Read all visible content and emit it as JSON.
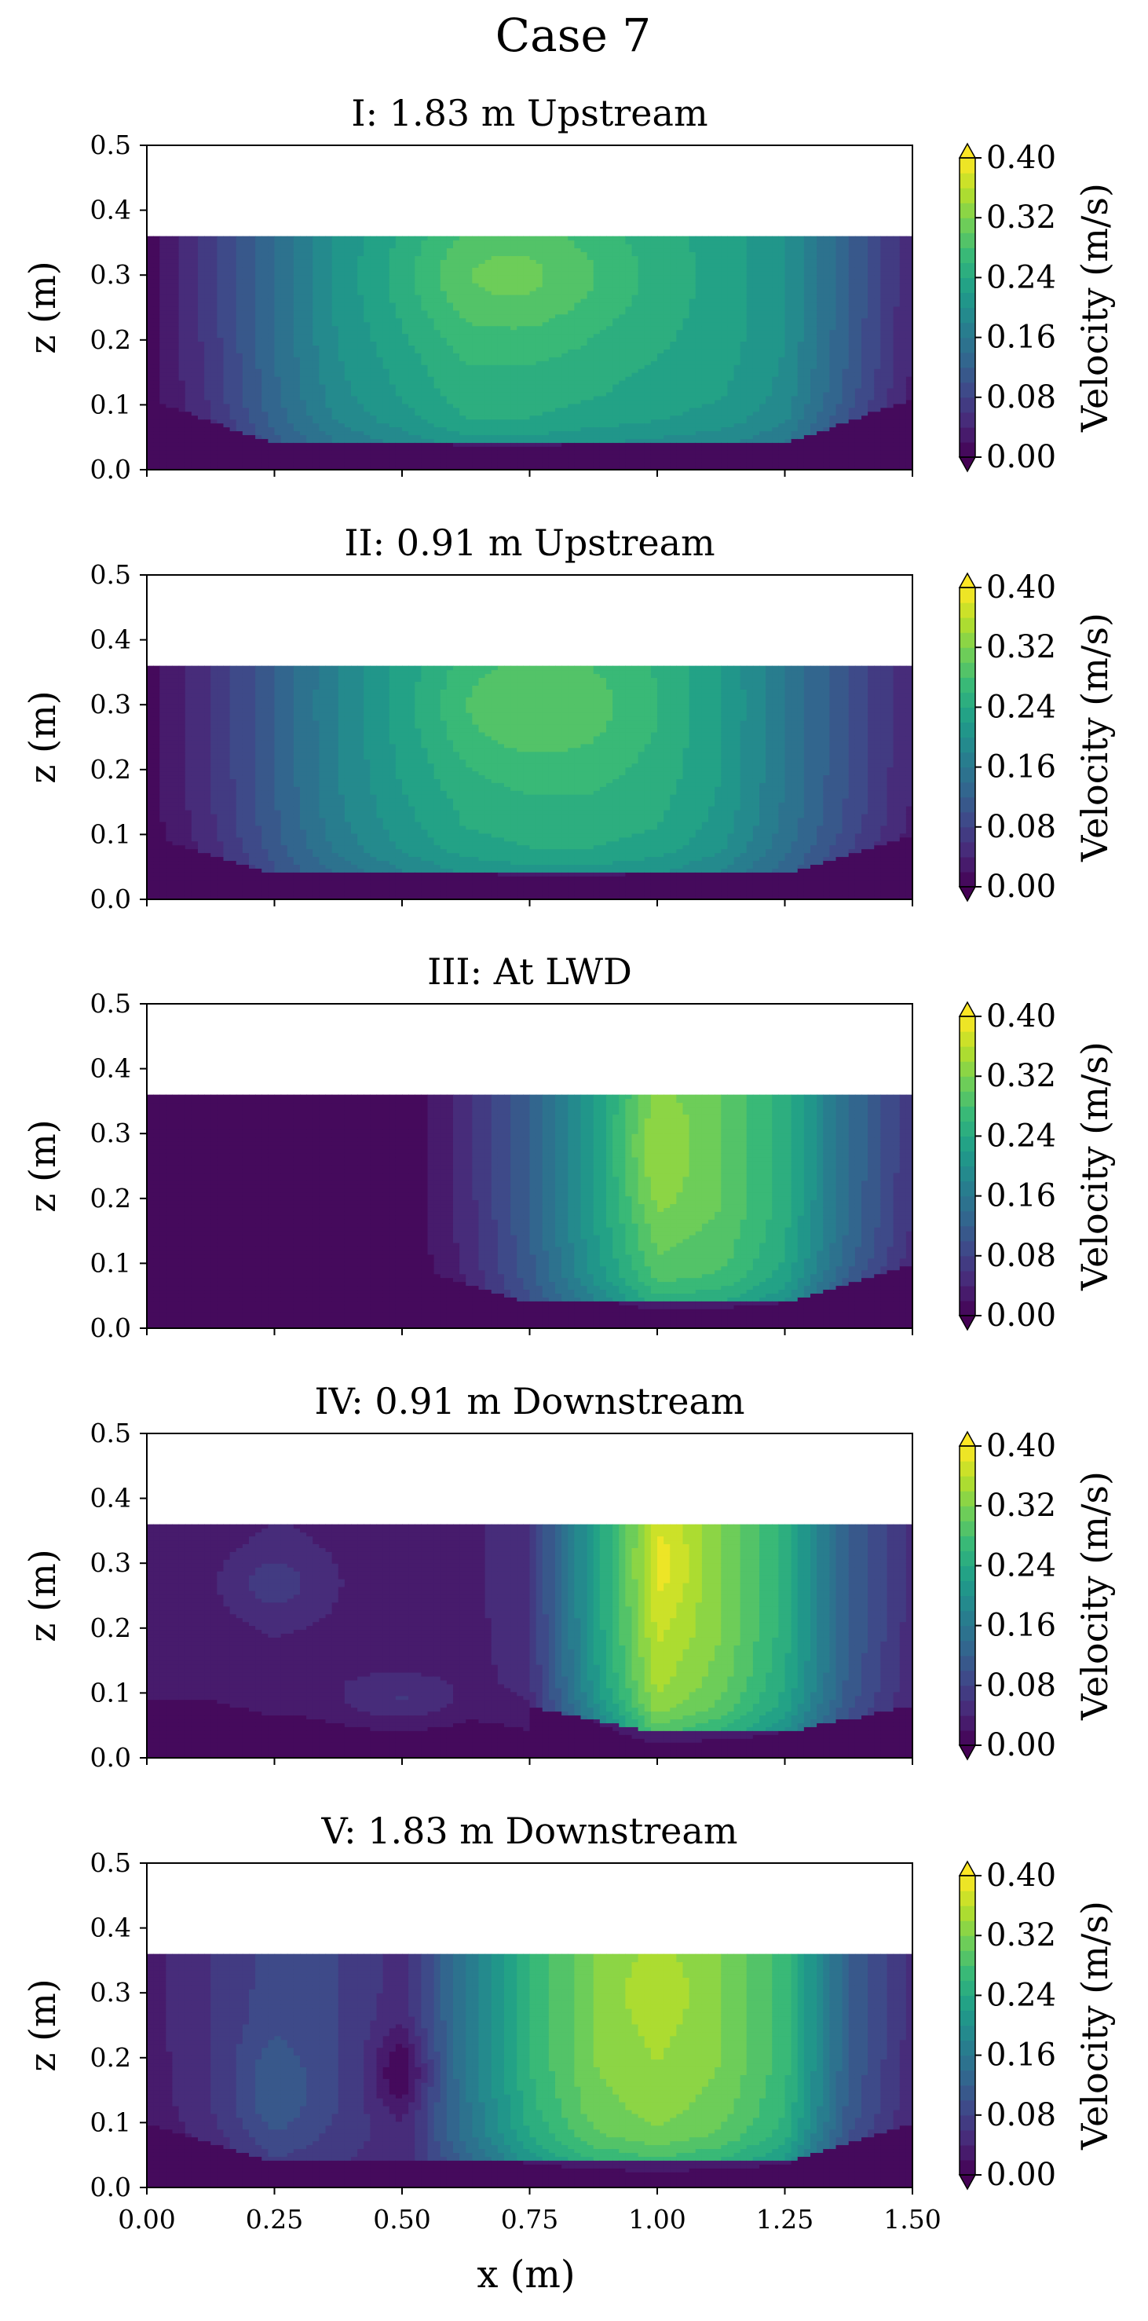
{
  "figure": {
    "title": "Case 7"
  },
  "chart_data": {
    "type": "contour",
    "suptitle": "Case 7",
    "shared": {
      "xlabel": "x (m)",
      "ylabel": "z (m)",
      "xlim": [
        0.0,
        1.5
      ],
      "ylim": [
        0.0,
        0.5
      ],
      "xticks": [
        "0.00",
        "0.25",
        "0.50",
        "0.75",
        "1.00",
        "1.25",
        "1.50"
      ],
      "yticks": [
        "0.0",
        "0.1",
        "0.2",
        "0.3",
        "0.4",
        "0.5"
      ],
      "water_surface_z": 0.36,
      "x_grid": [
        0.0,
        0.125,
        0.25,
        0.375,
        0.5,
        0.625,
        0.75,
        0.875,
        1.0,
        1.125,
        1.25,
        1.375,
        1.5
      ],
      "z_grid": [
        0.0,
        0.0375,
        0.075,
        0.1125,
        0.15,
        0.1875,
        0.225,
        0.2625,
        0.3,
        0.3375,
        0.36
      ],
      "colorbar": {
        "label": "Velocity (m/s)",
        "ticks": [
          "0.00",
          "0.08",
          "0.16",
          "0.24",
          "0.32",
          "0.40"
        ],
        "range": [
          0.0,
          0.4
        ],
        "extend": "both",
        "colormap": "viridis",
        "colormap_stops": [
          "#440154",
          "#482878",
          "#3e4989",
          "#31688e",
          "#26828e",
          "#1f9e89",
          "#35b779",
          "#6ece58",
          "#b5de2b",
          "#fde725"
        ]
      }
    },
    "panels": [
      {
        "title": "I: 1.83 m Upstream",
        "velocity_cols": [
          0.01,
          0.07,
          0.14,
          0.2,
          0.23,
          0.26,
          0.26,
          0.25,
          0.24,
          0.23,
          0.2,
          0.12,
          0.04
        ],
        "velocity_rows": [
          0.0,
          0.3,
          0.56,
          0.82,
          0.92,
          0.96,
          1.0,
          1.0,
          1.0,
          1.0,
          1.0
        ],
        "bed_x_nodes": [
          0.0,
          0.25,
          1.25,
          1.5
        ],
        "bed_z_nodes": [
          0.11,
          0.04,
          0.04,
          0.11
        ],
        "hotspots": [
          {
            "x": 0.72,
            "z": 0.3,
            "amp": 0.045,
            "sx": 0.25,
            "sz": 0.09
          }
        ]
      },
      {
        "title": "II: 0.91 m Upstream",
        "velocity_cols": [
          0.01,
          0.06,
          0.12,
          0.18,
          0.22,
          0.25,
          0.26,
          0.26,
          0.25,
          0.22,
          0.16,
          0.1,
          0.04
        ],
        "velocity_rows": [
          0.0,
          0.3,
          0.56,
          0.82,
          0.92,
          0.96,
          1.0,
          1.0,
          1.0,
          1.0,
          1.0
        ],
        "bed_x_nodes": [
          0.0,
          0.25,
          1.25,
          1.5
        ],
        "bed_z_nodes": [
          0.1,
          0.04,
          0.04,
          0.1
        ],
        "hotspots": [
          {
            "x": 0.75,
            "z": 0.3,
            "amp": 0.04,
            "sx": 0.22,
            "sz": 0.09
          }
        ]
      },
      {
        "title": "III: At LWD",
        "velocity_cols": [
          0.0,
          0.0,
          0.0,
          0.0,
          0.0,
          0.05,
          0.12,
          0.22,
          0.31,
          0.3,
          0.25,
          0.14,
          0.06
        ],
        "velocity_rows": [
          0.0,
          0.3,
          0.56,
          0.82,
          0.92,
          0.96,
          1.0,
          1.0,
          1.0,
          1.0,
          1.0
        ],
        "bed_x_nodes": [
          0.5,
          0.75,
          1.25,
          1.5
        ],
        "bed_z_nodes": [
          0.1,
          0.04,
          0.04,
          0.1
        ],
        "hotspots": [
          {
            "x": 1.0,
            "z": 0.28,
            "amp": 0.03,
            "sx": 0.08,
            "sz": 0.1
          }
        ]
      },
      {
        "title": "IV: 0.91 m Downstream",
        "velocity_cols": [
          0.03,
          0.03,
          0.04,
          0.035,
          0.03,
          0.03,
          0.06,
          0.22,
          0.36,
          0.32,
          0.25,
          0.12,
          0.05
        ],
        "velocity_rows": [
          0.0,
          0.3,
          0.56,
          0.82,
          0.92,
          0.96,
          1.0,
          1.0,
          1.0,
          1.0,
          1.0
        ],
        "bed_x_nodes": [
          0.75,
          1.0,
          1.25,
          1.5
        ],
        "bed_z_nodes": [
          0.08,
          0.04,
          0.04,
          0.08
        ],
        "hotspots": [
          {
            "x": 0.25,
            "z": 0.27,
            "amp": 0.03,
            "sx": 0.1,
            "sz": 0.05
          },
          {
            "x": 0.5,
            "z": 0.09,
            "amp": 0.04,
            "sx": 0.12,
            "sz": 0.04
          },
          {
            "x": 1.02,
            "z": 0.3,
            "amp": 0.03,
            "sx": 0.06,
            "sz": 0.08
          }
        ]
      },
      {
        "title": "V: 1.83 m Downstream",
        "velocity_cols": [
          0.03,
          0.06,
          0.09,
          0.08,
          0.05,
          0.16,
          0.26,
          0.32,
          0.34,
          0.32,
          0.27,
          0.12,
          0.05
        ],
        "velocity_rows": [
          0.0,
          0.3,
          0.56,
          0.82,
          0.92,
          0.96,
          1.0,
          1.0,
          1.0,
          1.0,
          1.0
        ],
        "bed_x_nodes": [
          0.0,
          0.25,
          1.25,
          1.5
        ],
        "bed_z_nodes": [
          0.1,
          0.04,
          0.04,
          0.1
        ],
        "hotspots": [
          {
            "x": 0.25,
            "z": 0.15,
            "amp": 0.03,
            "sx": 0.08,
            "sz": 0.08
          },
          {
            "x": 0.5,
            "z": 0.18,
            "amp": -0.05,
            "sx": 0.06,
            "sz": 0.06
          },
          {
            "x": 1.0,
            "z": 0.3,
            "amp": 0.02,
            "sx": 0.07,
            "sz": 0.06
          }
        ]
      }
    ]
  }
}
